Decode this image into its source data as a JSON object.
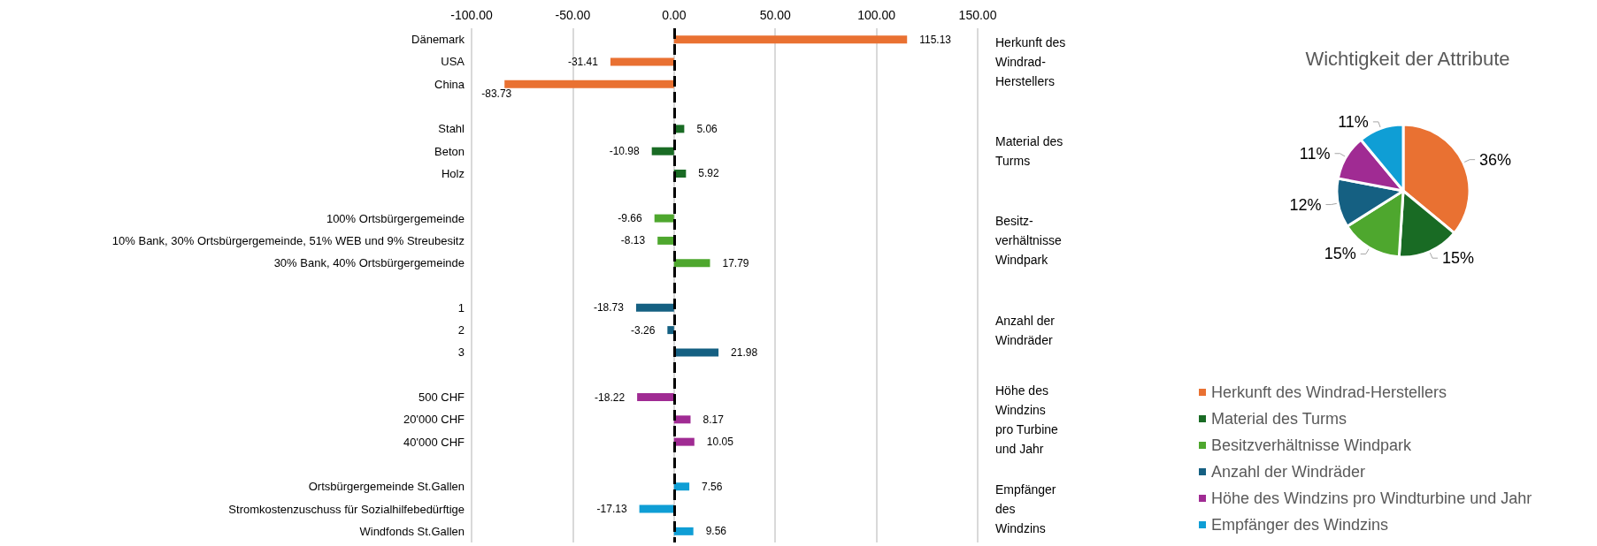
{
  "chart_data": [
    {
      "type": "bar",
      "orientation": "horizontal",
      "categories": [
        "Dänemark",
        "USA",
        "China",
        null,
        "Stahl",
        "Beton",
        "Holz",
        null,
        "100% Ortsbürgergemeinde",
        "10% Bank, 30% Ortsbürgergemeinde, 51% WEB und 9% Streubesitz",
        "30% Bank, 40% Ortsbürgergemeinde",
        null,
        "1",
        "2",
        "3",
        null,
        "500 CHF",
        "20'000 CHF",
        "40'000 CHF",
        null,
        "Ortsbürgergemeinde St.Gallen",
        "Stromkostenzuschuss für Sozialhilfebedürftige",
        "Windfonds St.Gallen"
      ],
      "values": [
        115.13,
        -31.41,
        -83.73,
        null,
        5.06,
        -10.98,
        5.92,
        null,
        -9.66,
        -8.13,
        17.79,
        null,
        -18.73,
        -3.26,
        21.98,
        null,
        -18.22,
        8.17,
        10.05,
        null,
        7.56,
        -17.13,
        9.56
      ],
      "colors": [
        "#e97132",
        "#e97132",
        "#e97132",
        null,
        "#196b24",
        "#196b24",
        "#196b24",
        null,
        "#4ea72e",
        "#4ea72e",
        "#4ea72e",
        null,
        "#156082",
        "#156082",
        "#156082",
        null,
        "#a02b93",
        "#a02b93",
        "#a02b93",
        null,
        "#0f9ed5",
        "#0f9ed5",
        "#0f9ed5"
      ],
      "xlim": [
        -100,
        150
      ],
      "xticks": [
        {
          "value": -100,
          "label": "-100.00"
        },
        {
          "value": -50,
          "label": "-50.00"
        },
        {
          "value": 0,
          "label": "0.00"
        },
        {
          "value": 50,
          "label": "50.00"
        },
        {
          "value": 100,
          "label": "100.00"
        },
        {
          "value": 150,
          "label": "150.00"
        }
      ],
      "grid": "x",
      "data_labels": true,
      "ref_lines": [
        {
          "axis": "x",
          "value": 0,
          "color": "#000000",
          "line_style": "dashed"
        }
      ],
      "annotations": [
        "Herkunft des Windrad-Herstellers",
        "Material des Turms",
        "Besitz-verhältnisse Windpark",
        "Anzahl der Windräder",
        "Höhe des Windzins pro Turbine und Jahr",
        "Empfänger des Windzins"
      ]
    },
    {
      "type": "pie",
      "title": "Wichtigkeit der Attribute",
      "categories": [
        "Herkunft des Windrad-Herstellers",
        "Material des Turms",
        "Besitzverhältnisse Windpark",
        "Anzahl der Windräder",
        "Höhe des Windzins pro Windturbine und Jahr",
        "Empfänger des Windzins"
      ],
      "values": [
        36,
        15,
        15,
        12,
        11,
        11
      ],
      "colors": [
        "#e97132",
        "#196b24",
        "#4ea72e",
        "#156082",
        "#a02b93",
        "#0f9ed5"
      ],
      "value_labels": [
        "36%",
        "15%",
        "15%",
        "12%",
        "11%",
        "11%"
      ],
      "legend": "bottom"
    }
  ]
}
